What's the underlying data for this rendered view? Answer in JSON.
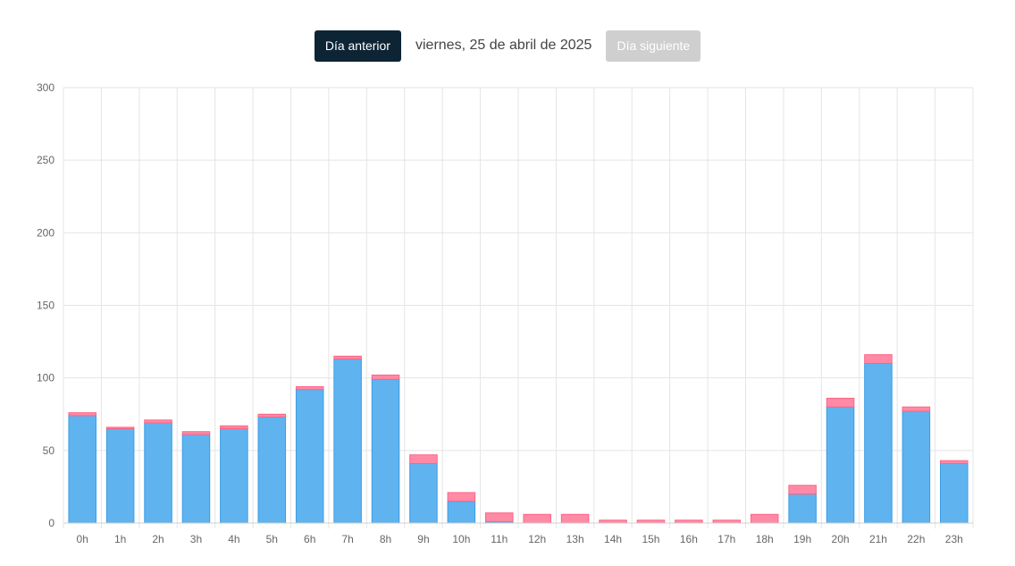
{
  "navigation": {
    "prev_label": "Día anterior",
    "date_label": "viernes, 25 de abril de 2025",
    "next_label": "Día siguiente"
  },
  "colors": {
    "series_blue_fill": "#5fb3ef",
    "series_blue_border": "#3a9ee6",
    "series_pink_fill": "#ff8aa6",
    "series_pink_border": "#ff6384",
    "grid": "#e5e5e5",
    "prev_button": "#0d2435",
    "next_button": "#cfcfcf"
  },
  "chart_data": {
    "type": "bar",
    "stacked": true,
    "title": "",
    "xlabel": "",
    "ylabel": "",
    "ylim": [
      0,
      300
    ],
    "yticks": [
      0,
      50,
      100,
      150,
      200,
      250,
      300
    ],
    "grid": true,
    "legend": "none",
    "categories": [
      "0h",
      "1h",
      "2h",
      "3h",
      "4h",
      "5h",
      "6h",
      "7h",
      "8h",
      "9h",
      "10h",
      "11h",
      "12h",
      "13h",
      "14h",
      "15h",
      "16h",
      "17h",
      "18h",
      "19h",
      "20h",
      "21h",
      "22h",
      "23h"
    ],
    "series": [
      {
        "name": "series-blue",
        "color": "#5fb3ef",
        "values": [
          74,
          65,
          69,
          61,
          65,
          73,
          92,
          113,
          99,
          41,
          15,
          1,
          0,
          0,
          0,
          0,
          0,
          0,
          0,
          20,
          80,
          110,
          77,
          41
        ]
      },
      {
        "name": "series-pink",
        "color": "#ff8aa6",
        "values": [
          2,
          1,
          2,
          2,
          2,
          2,
          2,
          2,
          3,
          6,
          6,
          6,
          6,
          6,
          2,
          2,
          2,
          2,
          6,
          6,
          6,
          6,
          3,
          2
        ]
      }
    ]
  }
}
